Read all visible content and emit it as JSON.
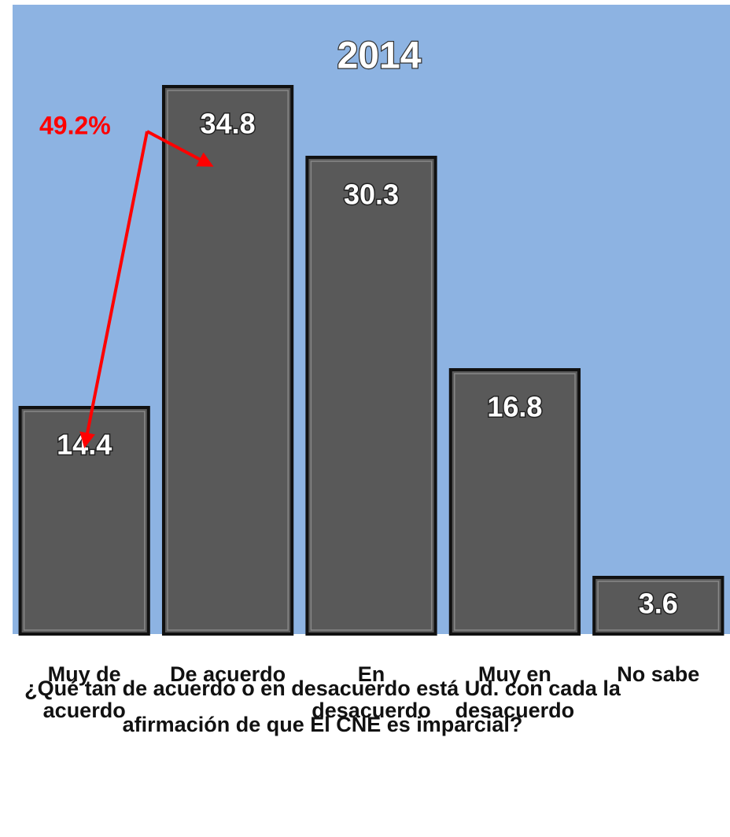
{
  "chart_data": {
    "type": "bar",
    "title": "2014",
    "categories": [
      "Muy de acuerdo",
      "De acuerdo",
      "En desacuerdo",
      "Muy en desacuerdo",
      "No sabe"
    ],
    "values": [
      14.4,
      34.8,
      30.3,
      16.8,
      3.6
    ],
    "color": "#595959",
    "background": "#8db3e2",
    "ylim": [
      0,
      40
    ],
    "annotations": [
      {
        "text": "49.2%",
        "color": "#ff0000"
      }
    ],
    "x_label": "¿Qué tan de acuerdo o en desacuerdo está Ud. con cada la afirmación de que El CNE es imparcial?"
  }
}
